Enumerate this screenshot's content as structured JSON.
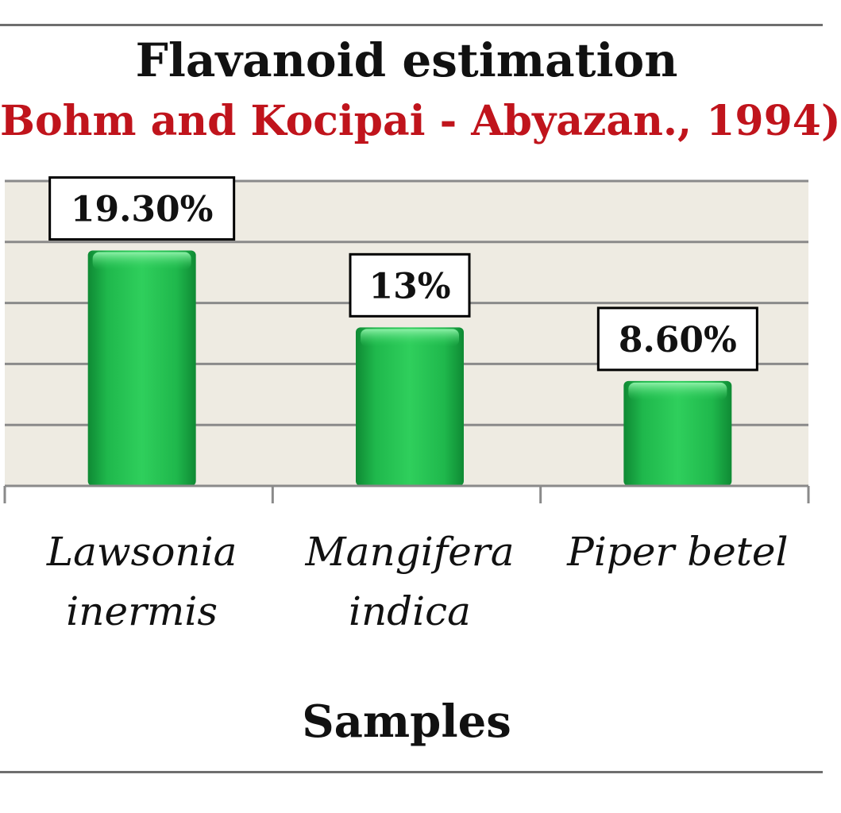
{
  "chart_data": {
    "type": "bar",
    "title": "Flavanoid estimation",
    "subtitle": "Bohm and Kocipai - Abyazan., 1994)",
    "xlabel": "Samples",
    "ylabel": "",
    "categories": [
      "Lawsonia inermis",
      "Mangifera indica",
      "Piper betel"
    ],
    "values": [
      19.3,
      13,
      8.6
    ],
    "data_labels": [
      "19.30%",
      "13%",
      "8.60%"
    ],
    "ylim": [
      0,
      25
    ],
    "grid": true,
    "bar_color": "#1db54a",
    "plot_background": "#eeebe2",
    "gridline_color": "#8a8a8a"
  }
}
